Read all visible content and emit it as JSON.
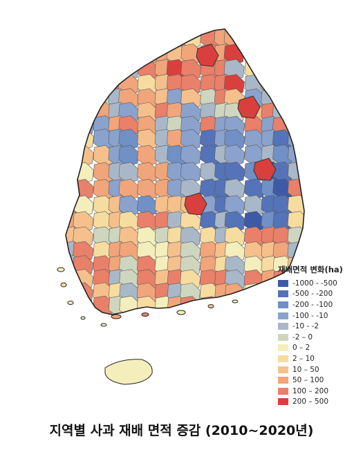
{
  "caption": "지역별 사과 재배 면적 증감 (2010~2020년)",
  "legend": {
    "title": "재배면적 변화(ha)",
    "items": [
      {
        "label": "-1000 - -500",
        "color": "#3d5aa8"
      },
      {
        "label": "-500 - -200",
        "color": "#5473b8"
      },
      {
        "label": "-200 - -100",
        "color": "#7090c6"
      },
      {
        "label": "-100 - -10",
        "color": "#8aa2cc"
      },
      {
        "label": "-10 - -2",
        "color": "#a9b8c8"
      },
      {
        "label": "-2 – 0",
        "color": "#cfd6bf"
      },
      {
        "label": "0 – 2",
        "color": "#f4eebc"
      },
      {
        "label": "2 – 10",
        "color": "#f7dca0"
      },
      {
        "label": "10 – 50",
        "color": "#f5c08c"
      },
      {
        "label": "50 – 100",
        "color": "#f0a57a"
      },
      {
        "label": "100 – 200",
        "color": "#e8806a"
      },
      {
        "label": "200 – 500",
        "color": "#d9403d"
      }
    ]
  }
}
